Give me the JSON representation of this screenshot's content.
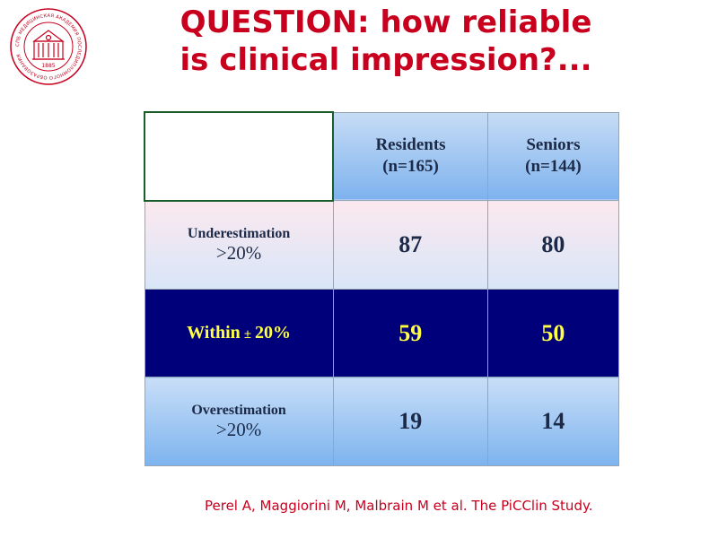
{
  "logo": {
    "ring_text": "СПБ МЕДИЦИНСКАЯ АКАДЕМИЯ ПОСЛЕДИПЛОМНОГО ОБРАЗОВАНИЯ",
    "year": "1885",
    "color": "#c8001e"
  },
  "title": {
    "line1": "QUESTION: how reliable",
    "line2": "is clinical impression?..."
  },
  "table": {
    "columns": [
      {
        "name": "Residents",
        "n": "(n=165)"
      },
      {
        "name": "Seniors",
        "n": "(n=144)"
      }
    ],
    "rows": [
      {
        "label1": "Underestimation",
        "label2": ">20%",
        "values": [
          "87",
          "80"
        ]
      },
      {
        "label1": "Within",
        "pm": "±",
        "label2": "20%",
        "values": [
          "59",
          "50"
        ]
      },
      {
        "label1": "Overestimation",
        "label2": ">20%",
        "values": [
          "19",
          "14"
        ]
      }
    ]
  },
  "citation": "Perel A, Maggiorini M, Malbrain M et al. The PiCClin Study."
}
